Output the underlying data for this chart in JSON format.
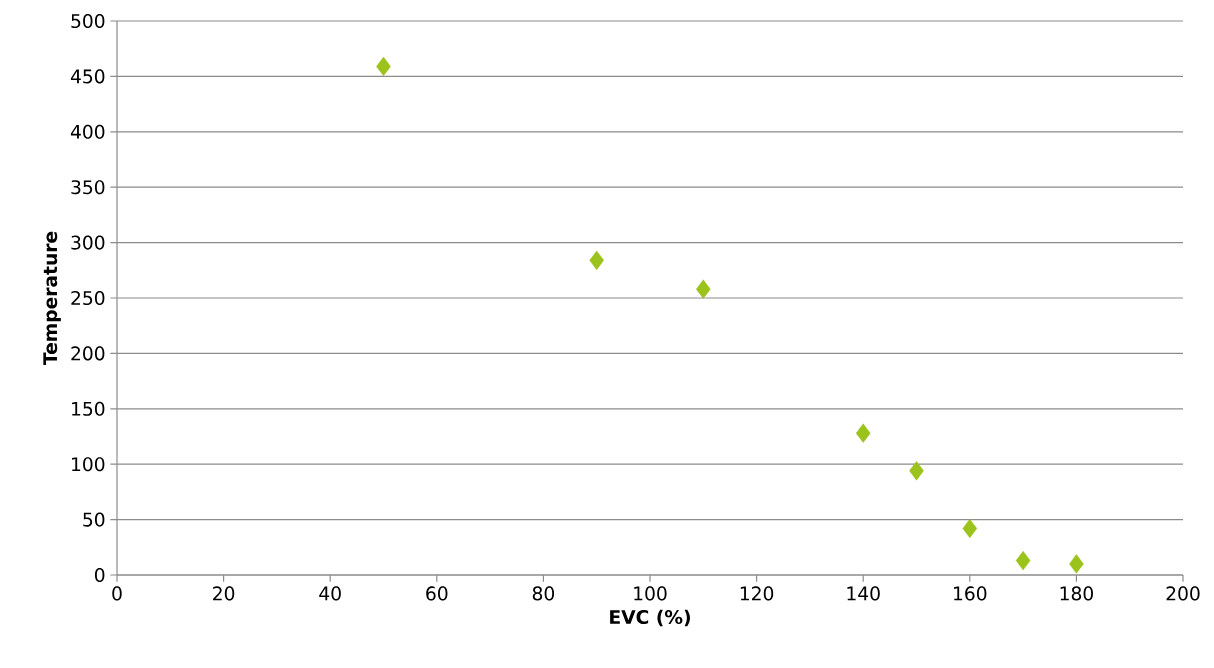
{
  "chart_data": {
    "type": "scatter",
    "xlabel": "EVC (%)",
    "ylabel": "Temperature",
    "x": [
      50,
      90,
      110,
      140,
      150,
      160,
      170,
      180
    ],
    "values": [
      459,
      284,
      258,
      128,
      94,
      42,
      13,
      10
    ],
    "color": "#9bc31c",
    "marker": "diamond",
    "grid": "y",
    "xlim": [
      0,
      200
    ],
    "xticks": [
      0,
      20,
      40,
      60,
      80,
      100,
      120,
      140,
      160,
      180,
      200
    ],
    "ylim": [
      0,
      500
    ],
    "yticks": [
      0,
      50,
      100,
      150,
      200,
      250,
      300,
      350,
      400,
      450,
      500
    ]
  }
}
